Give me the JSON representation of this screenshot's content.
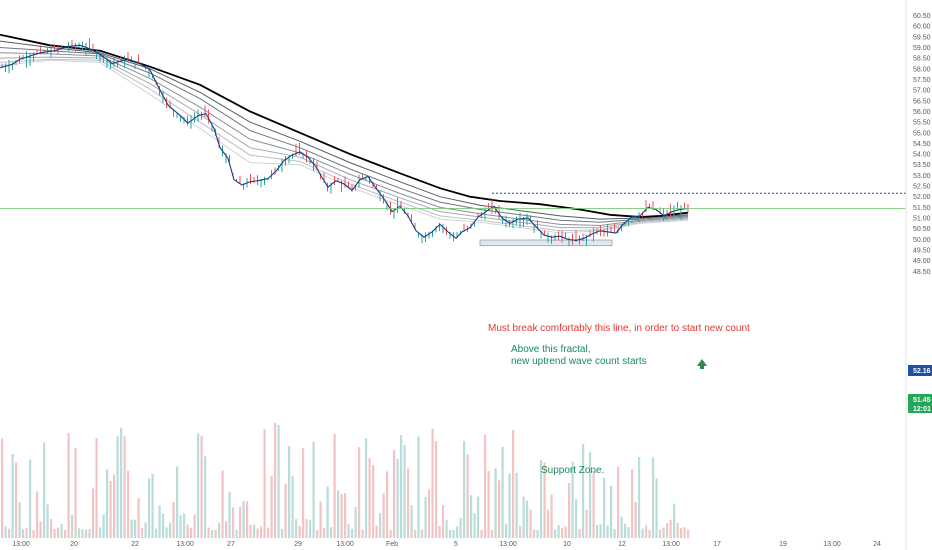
{
  "chart_data": {
    "type": "candlestick",
    "y_ticks": [
      "60.50",
      "60.00",
      "59.50",
      "59.00",
      "58.50",
      "58.00",
      "57.50",
      "57.00",
      "56.50",
      "56.00",
      "55.50",
      "55.00",
      "54.50",
      "54.00",
      "53.50",
      "53.00",
      "52.50",
      "52.00",
      "51.50",
      "51.00",
      "50.50",
      "50.00",
      "49.50",
      "49.00",
      "48.50"
    ],
    "ylim": [
      48.2,
      60.75
    ],
    "x_ticks": [
      "13:00",
      "20",
      "22",
      "13:00",
      "27",
      "29",
      "13:00",
      "Feb",
      "5",
      "13:00",
      "10",
      "12",
      "13:00",
      "17",
      "19",
      "13:00",
      "24"
    ],
    "annotations": {
      "break_line": "Must break comfortably this line, in order to start new count",
      "fractal_line1": "Above this fractal,",
      "fractal_line2": "new uptrend wave count starts",
      "support": "Support Zone."
    },
    "price_tags": {
      "level": "52.16",
      "last_price": "51.45",
      "countdown": "12:01"
    },
    "levels": {
      "fractal_level": 52.16,
      "last_price": 51.45,
      "support_low": 49.7,
      "support_high": 49.97
    },
    "colors": {
      "up": "#26a69a",
      "down": "#ef5350",
      "main_line": "#000000",
      "ma_fast": "#1e3a8a",
      "annotation_red": "#e53935",
      "annotation_green": "#1a8a5a",
      "level_line": "#1e4fa0"
    },
    "close_path": [
      [
        0,
        58.05
      ],
      [
        12,
        58.2
      ],
      [
        20,
        58.45
      ],
      [
        30,
        58.6
      ],
      [
        40,
        58.75
      ],
      [
        55,
        58.85
      ],
      [
        68,
        59.05
      ],
      [
        80,
        59.1
      ],
      [
        92,
        58.9
      ],
      [
        104,
        58.55
      ],
      [
        112,
        58.25
      ],
      [
        120,
        58.35
      ],
      [
        128,
        58.45
      ],
      [
        140,
        58.25
      ],
      [
        150,
        57.95
      ],
      [
        160,
        57.0
      ],
      [
        168,
        56.3
      ],
      [
        178,
        55.9
      ],
      [
        188,
        55.45
      ],
      [
        198,
        55.8
      ],
      [
        206,
        55.9
      ],
      [
        214,
        55.2
      ],
      [
        220,
        54.3
      ],
      [
        228,
        53.8
      ],
      [
        234,
        52.8
      ],
      [
        242,
        52.55
      ],
      [
        250,
        52.7
      ],
      [
        258,
        52.75
      ],
      [
        268,
        52.85
      ],
      [
        276,
        53.2
      ],
      [
        284,
        53.7
      ],
      [
        292,
        53.95
      ],
      [
        300,
        54.1
      ],
      [
        308,
        53.85
      ],
      [
        316,
        53.4
      ],
      [
        322,
        52.9
      ],
      [
        328,
        52.45
      ],
      [
        336,
        52.75
      ],
      [
        344,
        52.6
      ],
      [
        352,
        52.3
      ],
      [
        360,
        52.8
      ],
      [
        368,
        52.95
      ],
      [
        376,
        52.4
      ],
      [
        384,
        51.9
      ],
      [
        392,
        51.3
      ],
      [
        400,
        51.55
      ],
      [
        408,
        51.1
      ],
      [
        416,
        50.4
      ],
      [
        424,
        50.1
      ],
      [
        432,
        50.35
      ],
      [
        440,
        50.7
      ],
      [
        448,
        50.35
      ],
      [
        456,
        50.05
      ],
      [
        462,
        50.35
      ],
      [
        470,
        50.55
      ],
      [
        478,
        51.05
      ],
      [
        486,
        51.3
      ],
      [
        494,
        51.55
      ],
      [
        502,
        51.0
      ],
      [
        510,
        50.75
      ],
      [
        518,
        50.95
      ],
      [
        528,
        51.0
      ],
      [
        536,
        50.6
      ],
      [
        544,
        50.2
      ],
      [
        552,
        50.1
      ],
      [
        560,
        50.15
      ],
      [
        568,
        50.0
      ],
      [
        576,
        49.95
      ],
      [
        584,
        50.05
      ],
      [
        592,
        50.25
      ],
      [
        600,
        50.4
      ],
      [
        608,
        50.35
      ],
      [
        616,
        50.3
      ],
      [
        624,
        50.75
      ],
      [
        632,
        51.05
      ],
      [
        640,
        51.1
      ],
      [
        648,
        51.5
      ],
      [
        656,
        51.4
      ],
      [
        664,
        51.1
      ],
      [
        672,
        51.3
      ],
      [
        680,
        51.4
      ],
      [
        688,
        51.45
      ]
    ],
    "ema_main": [
      [
        0,
        59.6
      ],
      [
        50,
        59.1
      ],
      [
        100,
        58.85
      ],
      [
        150,
        58.1
      ],
      [
        200,
        57.25
      ],
      [
        250,
        56.0
      ],
      [
        300,
        55.0
      ],
      [
        350,
        54.0
      ],
      [
        400,
        53.1
      ],
      [
        440,
        52.4
      ],
      [
        470,
        52.0
      ],
      [
        500,
        51.8
      ],
      [
        540,
        51.65
      ],
      [
        580,
        51.4
      ],
      [
        610,
        51.15
      ],
      [
        640,
        51.05
      ],
      [
        660,
        51.1
      ],
      [
        688,
        51.25
      ]
    ],
    "ribbon": [
      [
        [
          0,
          59.3
        ],
        [
          50,
          59.0
        ],
        [
          100,
          58.75
        ],
        [
          150,
          58.0
        ],
        [
          200,
          56.9
        ],
        [
          250,
          55.5
        ],
        [
          300,
          54.6
        ],
        [
          350,
          53.6
        ],
        [
          400,
          52.7
        ],
        [
          440,
          52.0
        ],
        [
          480,
          51.6
        ],
        [
          520,
          51.35
        ],
        [
          560,
          51.1
        ],
        [
          600,
          50.95
        ],
        [
          640,
          51.0
        ],
        [
          688,
          51.15
        ]
      ],
      [
        [
          0,
          59.0
        ],
        [
          50,
          58.85
        ],
        [
          100,
          58.7
        ],
        [
          150,
          57.8
        ],
        [
          200,
          56.6
        ],
        [
          250,
          55.1
        ],
        [
          300,
          54.3
        ],
        [
          350,
          53.3
        ],
        [
          400,
          52.4
        ],
        [
          440,
          51.75
        ],
        [
          480,
          51.4
        ],
        [
          520,
          51.15
        ],
        [
          560,
          50.9
        ],
        [
          600,
          50.8
        ],
        [
          640,
          50.95
        ],
        [
          688,
          51.1
        ]
      ],
      [
        [
          0,
          58.75
        ],
        [
          50,
          58.7
        ],
        [
          100,
          58.6
        ],
        [
          150,
          57.55
        ],
        [
          200,
          56.2
        ],
        [
          250,
          54.7
        ],
        [
          300,
          54.05
        ],
        [
          350,
          53.05
        ],
        [
          400,
          52.15
        ],
        [
          440,
          51.5
        ],
        [
          480,
          51.2
        ],
        [
          520,
          50.95
        ],
        [
          560,
          50.7
        ],
        [
          600,
          50.65
        ],
        [
          640,
          50.9
        ],
        [
          688,
          51.05
        ]
      ],
      [
        [
          0,
          58.5
        ],
        [
          50,
          58.55
        ],
        [
          100,
          58.5
        ],
        [
          150,
          57.3
        ],
        [
          200,
          55.85
        ],
        [
          250,
          54.3
        ],
        [
          300,
          53.85
        ],
        [
          350,
          52.8
        ],
        [
          400,
          51.95
        ],
        [
          440,
          51.3
        ],
        [
          480,
          51.05
        ],
        [
          520,
          50.8
        ],
        [
          560,
          50.55
        ],
        [
          600,
          50.55
        ],
        [
          640,
          50.85
        ],
        [
          688,
          51.0
        ]
      ],
      [
        [
          0,
          58.3
        ],
        [
          50,
          58.45
        ],
        [
          100,
          58.4
        ],
        [
          150,
          57.05
        ],
        [
          200,
          55.5
        ],
        [
          250,
          53.95
        ],
        [
          300,
          53.65
        ],
        [
          350,
          52.6
        ],
        [
          400,
          51.75
        ],
        [
          440,
          51.1
        ],
        [
          480,
          50.9
        ],
        [
          520,
          50.65
        ],
        [
          560,
          50.4
        ],
        [
          600,
          50.45
        ],
        [
          640,
          50.8
        ],
        [
          688,
          50.95
        ]
      ],
      [
        [
          0,
          58.15
        ],
        [
          50,
          58.4
        ],
        [
          100,
          58.3
        ],
        [
          150,
          56.8
        ],
        [
          200,
          55.2
        ],
        [
          250,
          53.6
        ],
        [
          300,
          53.5
        ],
        [
          350,
          52.45
        ],
        [
          400,
          51.6
        ],
        [
          440,
          50.95
        ],
        [
          480,
          50.8
        ],
        [
          520,
          50.55
        ],
        [
          560,
          50.3
        ],
        [
          600,
          50.4
        ],
        [
          640,
          50.75
        ],
        [
          688,
          50.9
        ]
      ]
    ]
  }
}
